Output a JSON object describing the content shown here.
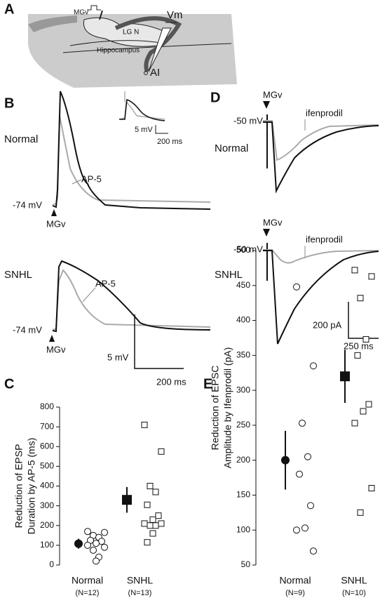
{
  "panel_a": {
    "label": "A",
    "mgv": "MGv",
    "lgn": "LG N",
    "hippocampus": "Hippocampus",
    "vm": "Vm",
    "ai": "AI"
  },
  "panel_b": {
    "label": "B",
    "normal": {
      "title": "Normal",
      "drug": "AP-5",
      "baseline": "-74 mV",
      "stim": "MGv",
      "inset_v": "5 mV",
      "inset_t": "200 ms"
    },
    "snhl": {
      "title": "SNHL",
      "drug": "AP-5",
      "baseline": "-74 mV",
      "stim": "MGv"
    },
    "scale_v": "5 mV",
    "scale_t": "200 ms"
  },
  "panel_d": {
    "label": "D",
    "normal": {
      "title": "Normal",
      "drug": "ifenprodil",
      "baseline": "-50 mV",
      "stim": "MGv"
    },
    "snhl": {
      "title": "SNHL",
      "drug": "ifenprodil",
      "baseline": "-50 mV",
      "stim": "MGv"
    },
    "scale_i": "200 pA",
    "scale_t": "250 ms"
  },
  "chart_data": [
    {
      "type": "strip",
      "panel_label": "C",
      "ylabel": [
        "Reduction of EPSP",
        "Duration by AP-5 (ms)"
      ],
      "ylim": [
        0,
        800
      ],
      "yticks": [
        0,
        100,
        200,
        300,
        400,
        500,
        600,
        700,
        800
      ],
      "groups": [
        {
          "category": "Normal",
          "n_label": "(N=12)",
          "marker": "circle",
          "mean": 108,
          "error": 25,
          "points": [
            170,
            165,
            150,
            140,
            125,
            120,
            110,
            100,
            90,
            75,
            40,
            20
          ]
        },
        {
          "category": "SNHL",
          "n_label": "(N=13)",
          "marker": "square",
          "mean": 330,
          "error": 65,
          "points": [
            710,
            575,
            400,
            370,
            305,
            250,
            230,
            210,
            210,
            200,
            200,
            160,
            115
          ]
        }
      ]
    },
    {
      "type": "strip",
      "panel_label": "E",
      "ylabel": [
        "Reduction of EPSC",
        "Amplitude by Ifenprodil (pA)"
      ],
      "ylim": [
        50,
        500
      ],
      "yticks": [
        50,
        100,
        150,
        200,
        250,
        300,
        350,
        400,
        450,
        500
      ],
      "groups": [
        {
          "category": "Normal",
          "n_label": "(N=9)",
          "marker": "circle",
          "mean": 200,
          "error": 42,
          "points": [
            448,
            335,
            253,
            205,
            180,
            135,
            103,
            100,
            70
          ]
        },
        {
          "category": "SNHL",
          "n_label": "(N=10)",
          "marker": "square",
          "mean": 320,
          "error": 38,
          "points": [
            472,
            463,
            432,
            373,
            350,
            280,
            270,
            253,
            160,
            125
          ]
        }
      ]
    }
  ]
}
